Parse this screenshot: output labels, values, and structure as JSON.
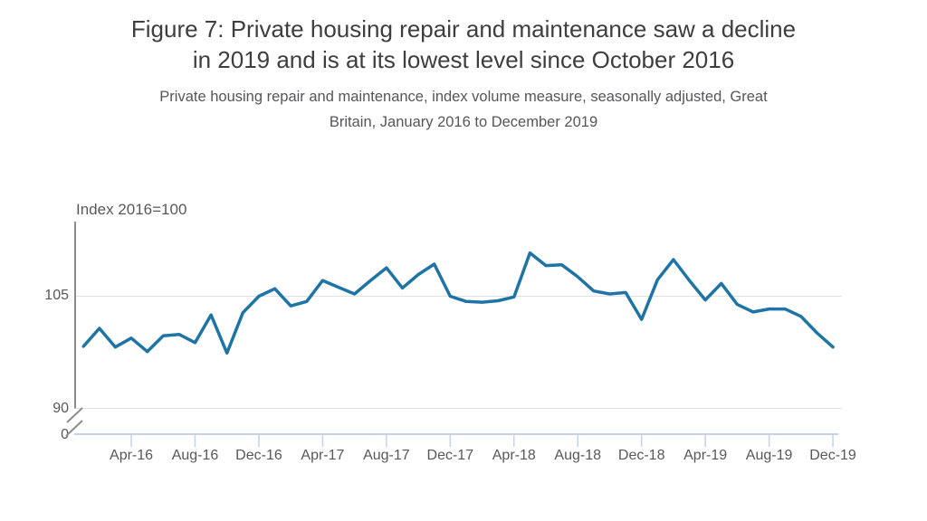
{
  "figure": {
    "title_lines": [
      "Figure 7: Private housing repair and maintenance saw a decline",
      "in 2019 and is at its lowest level since October 2016"
    ],
    "subtitle_lines": [
      "Private housing repair and maintenance, index volume measure, seasonally adjusted, Great",
      "Britain, January 2016 to December 2019"
    ]
  },
  "colors": {
    "line": "#1F74A6",
    "grid": "#E2E2E2",
    "y_axis": "#8C8C8C",
    "x_axis": "#C5D2E8",
    "title_text": "#3E3E40",
    "muted_text": "#58585A"
  },
  "chart_data": {
    "type": "line",
    "title": "Figure 7: Private housing repair and maintenance saw a decline in 2019 and is at its lowest level since October 2016",
    "subtitle": "Private housing repair and maintenance, index volume measure, seasonally adjusted, Great Britain, January 2016 to December 2019",
    "y_axis_label": "Index 2016=100",
    "grid": "horizontal",
    "legend": "none",
    "y_axis_break_between": [
      0,
      90
    ],
    "ylim_linear_region": [
      90,
      115
    ],
    "y_ticks": [
      {
        "value": 105,
        "label": "105"
      },
      {
        "value": 90,
        "label": "90"
      },
      {
        "value": 0,
        "label": "0"
      }
    ],
    "x_tick_labels": [
      "Apr-16",
      "Aug-16",
      "Dec-16",
      "Apr-17",
      "Aug-17",
      "Dec-17",
      "Apr-18",
      "Aug-18",
      "Dec-18",
      "Apr-19",
      "Aug-19",
      "Dec-19"
    ],
    "x": [
      "Jan-16",
      "Feb-16",
      "Mar-16",
      "Apr-16",
      "May-16",
      "Jun-16",
      "Jul-16",
      "Aug-16",
      "Sep-16",
      "Oct-16",
      "Nov-16",
      "Dec-16",
      "Jan-17",
      "Feb-17",
      "Mar-17",
      "Apr-17",
      "May-17",
      "Jun-17",
      "Jul-17",
      "Aug-17",
      "Sep-17",
      "Oct-17",
      "Nov-17",
      "Dec-17",
      "Jan-18",
      "Feb-18",
      "Mar-18",
      "Apr-18",
      "May-18",
      "Jun-18",
      "Jul-18",
      "Aug-18",
      "Sep-18",
      "Oct-18",
      "Nov-18",
      "Dec-18",
      "Jan-19",
      "Feb-19",
      "Mar-19",
      "Apr-19",
      "May-19",
      "Jun-19",
      "Jul-19",
      "Aug-19",
      "Sep-19",
      "Oct-19",
      "Nov-19",
      "Dec-19"
    ],
    "series": [
      {
        "name": "Private housing repair and maintenance",
        "color": "#1F74A6",
        "values": [
          98.3,
          100.7,
          98.2,
          99.4,
          97.6,
          99.7,
          99.9,
          98.8,
          102.5,
          97.4,
          102.8,
          105.0,
          106.0,
          103.7,
          104.3,
          107.1,
          106.2,
          105.3,
          107.1,
          108.8,
          106.1,
          107.9,
          109.3,
          105.0,
          104.3,
          104.2,
          104.4,
          104.9,
          110.8,
          109.1,
          109.2,
          107.6,
          105.7,
          105.3,
          105.5,
          101.9,
          107.2,
          109.9,
          107.1,
          104.5,
          106.7,
          103.9,
          102.9,
          103.3,
          103.3,
          102.3,
          100.1,
          98.2
        ]
      }
    ]
  }
}
